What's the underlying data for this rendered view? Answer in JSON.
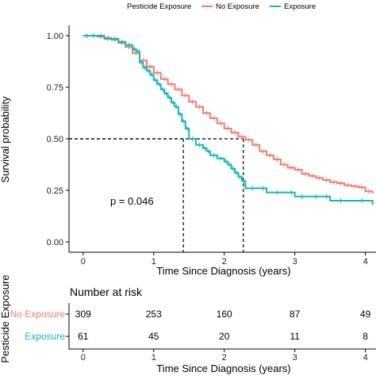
{
  "colors": {
    "no_exposure": "#F07C70",
    "exposure": "#17B5B8",
    "axis": "#000000",
    "text": "#000000"
  },
  "legend": {
    "title": "Pesticide Exposure",
    "items": [
      {
        "label": "No Exposure",
        "color": "#F07C70"
      },
      {
        "label": "Exposure",
        "color": "#17B5B8"
      }
    ],
    "placement": "top"
  },
  "annotation": {
    "p_value": "p = 0.046"
  },
  "chart_data": [
    {
      "type": "line",
      "xlabel": "Time Since Diagnosis (years)",
      "ylabel": "Survival probability",
      "xlim": [
        -0.2,
        4.15
      ],
      "ylim": [
        -0.05,
        1.05
      ],
      "x_ticks": [
        0,
        1,
        2,
        3,
        4
      ],
      "x_tick_labels": [
        "0",
        "1",
        "2",
        "3",
        "4"
      ],
      "y_ticks": [
        0,
        0.25,
        0.5,
        0.75,
        1
      ],
      "y_tick_labels": [
        "0.00",
        "0.25",
        "0.50",
        "0.75",
        "1.00"
      ],
      "grid": false,
      "median_lines": [
        {
          "series": "Exposure",
          "x": 1.42,
          "y": 0.5
        },
        {
          "series": "No Exposure",
          "x": 2.27,
          "y": 0.5
        }
      ],
      "series": [
        {
          "name": "No Exposure",
          "color": "#F07C70",
          "step": true,
          "censored_marks": true,
          "x": [
            0,
            0.1,
            0.2,
            0.3,
            0.4,
            0.5,
            0.6,
            0.7,
            0.8,
            0.9,
            1.0,
            1.1,
            1.2,
            1.3,
            1.4,
            1.5,
            1.6,
            1.7,
            1.8,
            1.9,
            2.0,
            2.1,
            2.2,
            2.3,
            2.4,
            2.5,
            2.6,
            2.7,
            2.8,
            2.9,
            3.0,
            3.1,
            3.2,
            3.3,
            3.4,
            3.5,
            3.6,
            3.7,
            3.8,
            3.9,
            4.0,
            4.1
          ],
          "y": [
            1.0,
            1.0,
            0.995,
            0.99,
            0.98,
            0.965,
            0.945,
            0.915,
            0.88,
            0.85,
            0.82,
            0.79,
            0.765,
            0.74,
            0.71,
            0.68,
            0.655,
            0.625,
            0.6,
            0.575,
            0.55,
            0.53,
            0.51,
            0.495,
            0.47,
            0.44,
            0.42,
            0.4,
            0.375,
            0.36,
            0.35,
            0.33,
            0.32,
            0.31,
            0.3,
            0.29,
            0.285,
            0.275,
            0.27,
            0.265,
            0.245,
            0.235
          ]
        },
        {
          "name": "Exposure",
          "color": "#17B5B8",
          "step": true,
          "censored_marks": true,
          "x": [
            0,
            0.1,
            0.2,
            0.3,
            0.4,
            0.5,
            0.6,
            0.7,
            0.75,
            0.8,
            0.85,
            0.9,
            0.95,
            1.0,
            1.05,
            1.1,
            1.15,
            1.2,
            1.25,
            1.3,
            1.35,
            1.4,
            1.45,
            1.5,
            1.6,
            1.7,
            1.75,
            1.8,
            1.9,
            2.0,
            2.05,
            2.1,
            2.15,
            2.2,
            2.25,
            2.3,
            2.5,
            2.6,
            2.9,
            3.0,
            3.2,
            3.4,
            3.5,
            3.8,
            4.1
          ],
          "y": [
            1.0,
            1.0,
            1.0,
            0.985,
            0.985,
            0.97,
            0.955,
            0.935,
            0.925,
            0.87,
            0.845,
            0.83,
            0.81,
            0.785,
            0.765,
            0.74,
            0.72,
            0.7,
            0.675,
            0.655,
            0.62,
            0.585,
            0.55,
            0.5,
            0.47,
            0.455,
            0.44,
            0.42,
            0.405,
            0.39,
            0.375,
            0.355,
            0.335,
            0.315,
            0.295,
            0.26,
            0.26,
            0.24,
            0.24,
            0.22,
            0.22,
            0.22,
            0.2,
            0.2,
            0.18
          ]
        }
      ]
    },
    {
      "type": "table",
      "title": "Number at risk",
      "ylabel": "Pesticide Exposure",
      "xlabel": "Time Since Diagnosis (years)",
      "x_ticks": [
        0,
        1,
        2,
        3,
        4
      ],
      "x_tick_labels": [
        "0",
        "1",
        "2",
        "3",
        "4"
      ],
      "rows": [
        {
          "name": "No Exposure",
          "color": "#F07C70",
          "values": [
            "309",
            "253",
            "160",
            "87",
            "49"
          ]
        },
        {
          "name": "Exposure",
          "color": "#17B5B8",
          "values": [
            "61",
            "45",
            "20",
            "11",
            "8"
          ]
        }
      ]
    }
  ]
}
